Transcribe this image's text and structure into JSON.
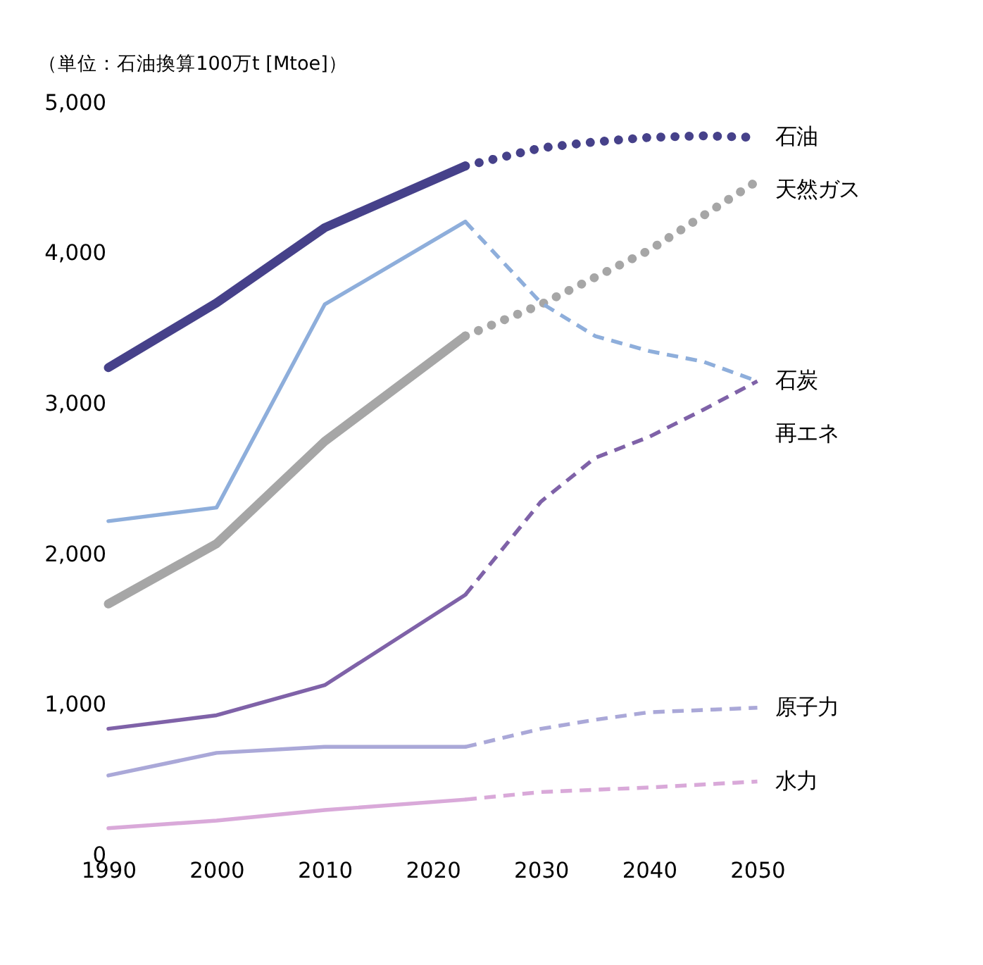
{
  "chart_data": {
    "type": "line",
    "ylabel": "（単位：石油換算100万t [Mtoe]）",
    "xlim": [
      1990,
      2050
    ],
    "xticks": [
      1990,
      2000,
      2010,
      2020,
      2030,
      2040,
      2050
    ],
    "ylim": [
      0,
      5000
    ],
    "yticks": [
      {
        "value": 0,
        "label": "0"
      },
      {
        "value": 1000,
        "label": "1,000"
      },
      {
        "value": 2000,
        "label": "2,000"
      },
      {
        "value": 3000,
        "label": "3,000"
      },
      {
        "value": 4000,
        "label": "4,000"
      },
      {
        "value": 5000,
        "label": "5,000"
      }
    ],
    "grid": false,
    "marker": "none",
    "series": [
      {
        "color": "#46418a",
        "line_style": "solid",
        "x": [
          1990,
          2000,
          2010,
          2023
        ],
        "values": [
          3240,
          3670,
          4170,
          4580
        ]
      },
      {
        "name": "石油",
        "color": "#46418a",
        "line_style": "dotted",
        "x": [
          2023,
          2030,
          2035,
          2040,
          2045,
          2050
        ],
        "values": [
          4580,
          4700,
          4740,
          4770,
          4780,
          4770
        ]
      },
      {
        "color": "#a6a6a6",
        "line_style": "solid",
        "x": [
          1990,
          2000,
          2010,
          2023
        ],
        "values": [
          1670,
          2070,
          2750,
          3450
        ]
      },
      {
        "name": "天然ガス",
        "color": "#a6a6a6",
        "line_style": "dotted",
        "x": [
          2023,
          2030,
          2040,
          2050
        ],
        "values": [
          3450,
          3660,
          4020,
          4480
        ]
      },
      {
        "color": "#8eaedb",
        "line_style": "solid",
        "x": [
          1990,
          2000,
          2010,
          2023
        ],
        "values": [
          2220,
          2310,
          3660,
          4210
        ]
      },
      {
        "name": "石炭",
        "color": "#8eaedb",
        "line_style": "dashed",
        "x": [
          2023,
          2030,
          2035,
          2040,
          2045,
          2050
        ],
        "values": [
          4210,
          3670,
          3450,
          3350,
          3280,
          3150
        ]
      },
      {
        "color": "#7f62a8",
        "line_style": "solid",
        "x": [
          1990,
          2000,
          2010,
          2023
        ],
        "values": [
          840,
          930,
          1130,
          1730
        ]
      },
      {
        "name": "再エネ",
        "color": "#7f62a8",
        "line_style": "dashed",
        "x": [
          2023,
          2030,
          2035,
          2040,
          2045,
          2050
        ],
        "values": [
          1730,
          2350,
          2640,
          2780,
          2960,
          3150
        ]
      },
      {
        "color": "#aaa8d8",
        "line_style": "solid",
        "x": [
          1990,
          2000,
          2010,
          2023
        ],
        "values": [
          530,
          680,
          720,
          720
        ]
      },
      {
        "name": "原子力",
        "color": "#aaa8d8",
        "line_style": "dashed",
        "x": [
          2023,
          2030,
          2035,
          2040,
          2050
        ],
        "values": [
          720,
          840,
          900,
          950,
          980
        ]
      },
      {
        "color": "#d9a9d9",
        "line_style": "solid",
        "x": [
          1990,
          2000,
          2010,
          2023
        ],
        "values": [
          180,
          230,
          300,
          370
        ]
      },
      {
        "name": "水力",
        "color": "#d9a9d9",
        "line_style": "dashed",
        "x": [
          2023,
          2030,
          2040,
          2050
        ],
        "values": [
          370,
          420,
          450,
          490
        ]
      }
    ]
  }
}
